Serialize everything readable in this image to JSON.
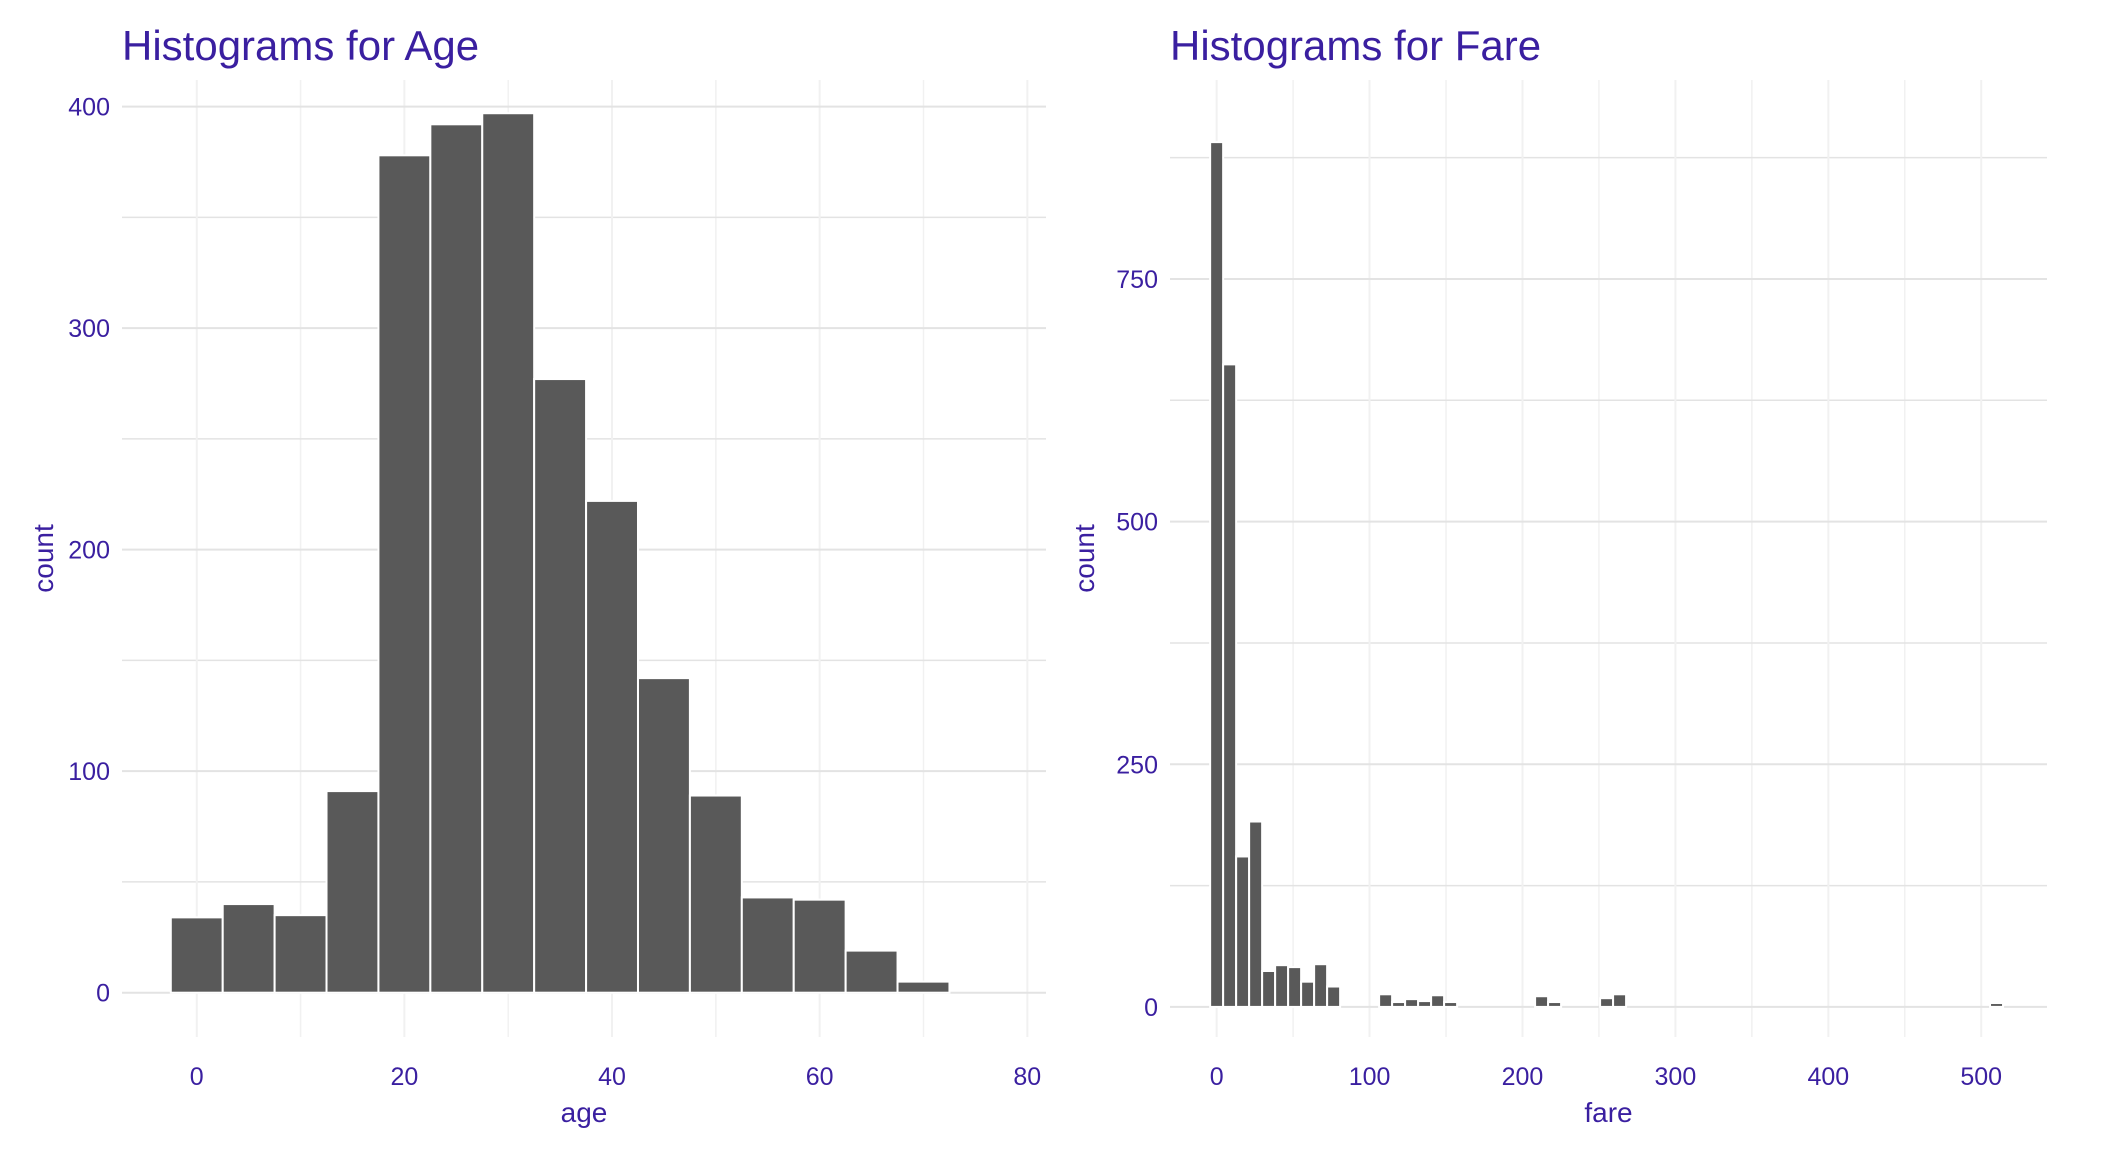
{
  "theme": {
    "text_color": "#3a1fa0",
    "bar_fill": "#595959",
    "bar_stroke": "#ffffff",
    "grid_major": "#e3e3e3",
    "grid_minor": "#f1f1f1"
  },
  "chart_data": [
    {
      "type": "bar",
      "title": "Histograms for Age",
      "xlabel": "age",
      "ylabel": "count",
      "xlim": [
        -7.2,
        81.8
      ],
      "ylim": [
        -20,
        412
      ],
      "xticks": [
        0,
        20,
        40,
        60,
        80
      ],
      "yticks": [
        0,
        100,
        200,
        300,
        400
      ],
      "grid": true,
      "binwidth": 5,
      "bins": [
        {
          "center": 0,
          "count": 34
        },
        {
          "center": 5,
          "count": 40
        },
        {
          "center": 10,
          "count": 35
        },
        {
          "center": 15,
          "count": 91
        },
        {
          "center": 20,
          "count": 378
        },
        {
          "center": 25,
          "count": 392
        },
        {
          "center": 30,
          "count": 397
        },
        {
          "center": 35,
          "count": 277
        },
        {
          "center": 40,
          "count": 222
        },
        {
          "center": 45,
          "count": 142
        },
        {
          "center": 50,
          "count": 89
        },
        {
          "center": 55,
          "count": 43
        },
        {
          "center": 60,
          "count": 42
        },
        {
          "center": 65,
          "count": 19
        },
        {
          "center": 70,
          "count": 5
        }
      ]
    },
    {
      "type": "bar",
      "title": "Histograms for Fare",
      "xlabel": "fare",
      "ylabel": "count",
      "xlim": [
        -30.5,
        543
      ],
      "ylim": [
        -31,
        955
      ],
      "xticks": [
        0,
        100,
        200,
        300,
        400,
        500
      ],
      "yticks": [
        0,
        250,
        500,
        750
      ],
      "grid": true,
      "binwidth": 8.5,
      "bins": [
        {
          "center": 0,
          "count": 891
        },
        {
          "center": 8.5,
          "count": 662
        },
        {
          "center": 17,
          "count": 155
        },
        {
          "center": 25.5,
          "count": 191
        },
        {
          "center": 34,
          "count": 37
        },
        {
          "center": 42.5,
          "count": 43
        },
        {
          "center": 51,
          "count": 41
        },
        {
          "center": 59.5,
          "count": 26
        },
        {
          "center": 68,
          "count": 44
        },
        {
          "center": 76.5,
          "count": 21
        },
        {
          "center": 110.5,
          "count": 13
        },
        {
          "center": 119,
          "count": 5
        },
        {
          "center": 127.5,
          "count": 8
        },
        {
          "center": 136,
          "count": 6
        },
        {
          "center": 144.5,
          "count": 12
        },
        {
          "center": 153,
          "count": 5
        },
        {
          "center": 212.5,
          "count": 11
        },
        {
          "center": 221,
          "count": 5
        },
        {
          "center": 255,
          "count": 9
        },
        {
          "center": 263.5,
          "count": 13
        },
        {
          "center": 510,
          "count": 4
        }
      ]
    }
  ]
}
